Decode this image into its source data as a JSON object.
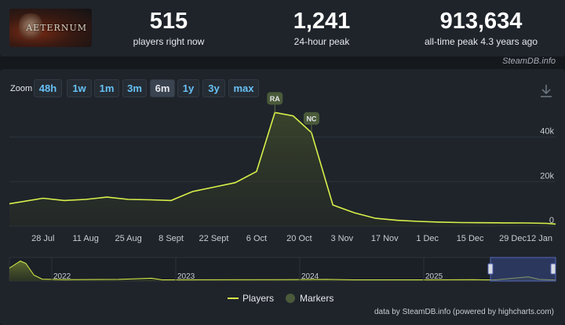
{
  "game": {
    "logo_text": "AETERNUM"
  },
  "stats": [
    {
      "value": "515",
      "label": "players right now"
    },
    {
      "value": "1,241",
      "label": "24-hour peak"
    },
    {
      "value": "913,634",
      "label": "all-time peak 4.3 years ago"
    }
  ],
  "credit_top": "SteamDB.info",
  "zoom": {
    "label": "Zoom",
    "options": [
      "48h",
      "1w",
      "1m",
      "3m",
      "6m",
      "1y",
      "3y",
      "max"
    ],
    "selected": "6m"
  },
  "colors": {
    "series": "#d8f04a",
    "marker": "#4a5a3a",
    "grid": "#2c323a",
    "nav_sel": "#3b4a8c"
  },
  "chart_data": {
    "type": "line",
    "series": [
      {
        "name": "Players",
        "x": [
          "2024-07-17",
          "2024-07-28",
          "2024-08-04",
          "2024-08-11",
          "2024-08-18",
          "2024-08-25",
          "2024-09-01",
          "2024-09-08",
          "2024-09-15",
          "2024-09-22",
          "2024-09-29",
          "2024-10-06",
          "2024-10-12",
          "2024-10-18",
          "2024-10-24",
          "2024-10-31",
          "2024-11-07",
          "2024-11-14",
          "2024-11-21",
          "2024-11-28",
          "2024-12-05",
          "2024-12-12",
          "2024-12-19",
          "2024-12-26",
          "2025-01-02",
          "2025-01-09",
          "2025-01-12"
        ],
        "values": [
          10000,
          12500,
          11500,
          12000,
          13000,
          12000,
          11800,
          11500,
          15500,
          17500,
          19500,
          24500,
          51000,
          49500,
          42000,
          9500,
          6000,
          3500,
          2600,
          2100,
          1800,
          1600,
          1500,
          1450,
          1400,
          1250,
          900
        ]
      }
    ],
    "markers": [
      {
        "label": "RA",
        "date": "2024-10-12"
      },
      {
        "label": "NC",
        "date": "2024-10-24"
      }
    ],
    "x_ticks": [
      "28 Jul",
      "11 Aug",
      "25 Aug",
      "8 Sept",
      "22 Sept",
      "6 Oct",
      "20 Oct",
      "3 Nov",
      "17 Nov",
      "1 Dec",
      "15 Dec",
      "29 Dec",
      "12 Jan"
    ],
    "y_ticks": [
      "0",
      "20k",
      "40k"
    ],
    "ylim": [
      0,
      55000
    ],
    "navigator_years": [
      "2022",
      "2023",
      "2024",
      "2025"
    ],
    "legend": [
      "Players",
      "Markers"
    ]
  },
  "credit_bottom": "data by SteamDB.info (powered by highcharts.com)"
}
